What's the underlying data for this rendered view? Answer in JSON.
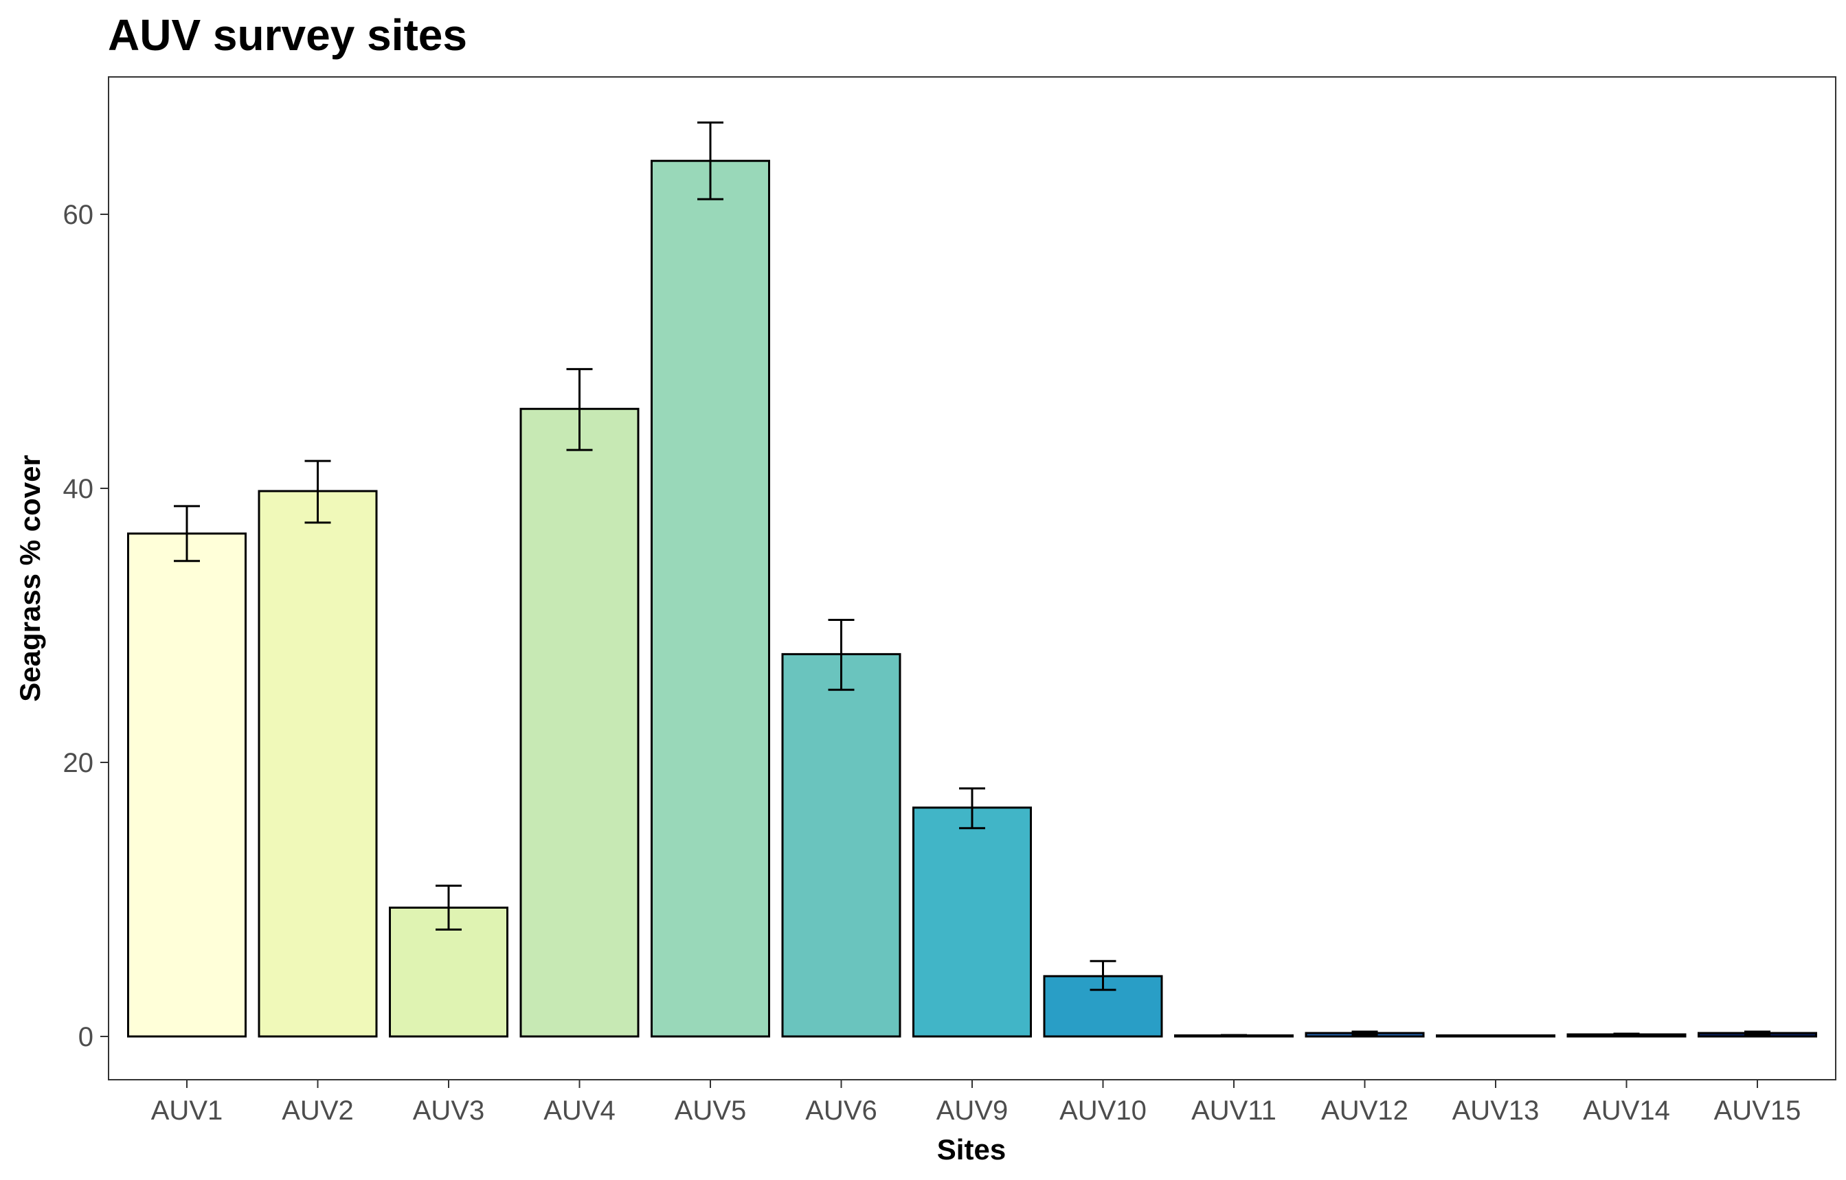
{
  "chart_data": {
    "type": "bar",
    "title": "AUV survey sites",
    "xlabel": "Sites",
    "ylabel": "Seagrass % cover",
    "categories": [
      "AUV1",
      "AUV2",
      "AUV3",
      "AUV4",
      "AUV5",
      "AUV6",
      "AUV9",
      "AUV10",
      "AUV11",
      "AUV12",
      "AUV13",
      "AUV14",
      "AUV15"
    ],
    "values": [
      36.7,
      39.8,
      9.4,
      45.8,
      63.9,
      27.9,
      16.7,
      4.4,
      0.05,
      0.25,
      0.0,
      0.15,
      0.25
    ],
    "error_low": [
      34.7,
      37.5,
      7.8,
      42.8,
      61.1,
      25.3,
      15.2,
      3.4,
      0.0,
      0.15,
      0.0,
      0.1,
      0.15
    ],
    "error_high": [
      38.7,
      42.0,
      11.0,
      48.7,
      66.7,
      30.4,
      18.1,
      5.5,
      0.1,
      0.35,
      0.0,
      0.2,
      0.35
    ],
    "colors": [
      "#ffffd9",
      "#f0f9b9",
      "#dff3b2",
      "#c7e9b4",
      "#99d8b9",
      "#6ac4be",
      "#41b5c7",
      "#299ec6",
      "#1d81b9",
      "#225fa8",
      "#243d97",
      "#1e2c7f",
      "#081d58"
    ],
    "yticks": [
      0,
      20,
      40,
      60
    ],
    "ylim": [
      -3.3,
      70
    ],
    "grid": false,
    "legend": "none"
  }
}
